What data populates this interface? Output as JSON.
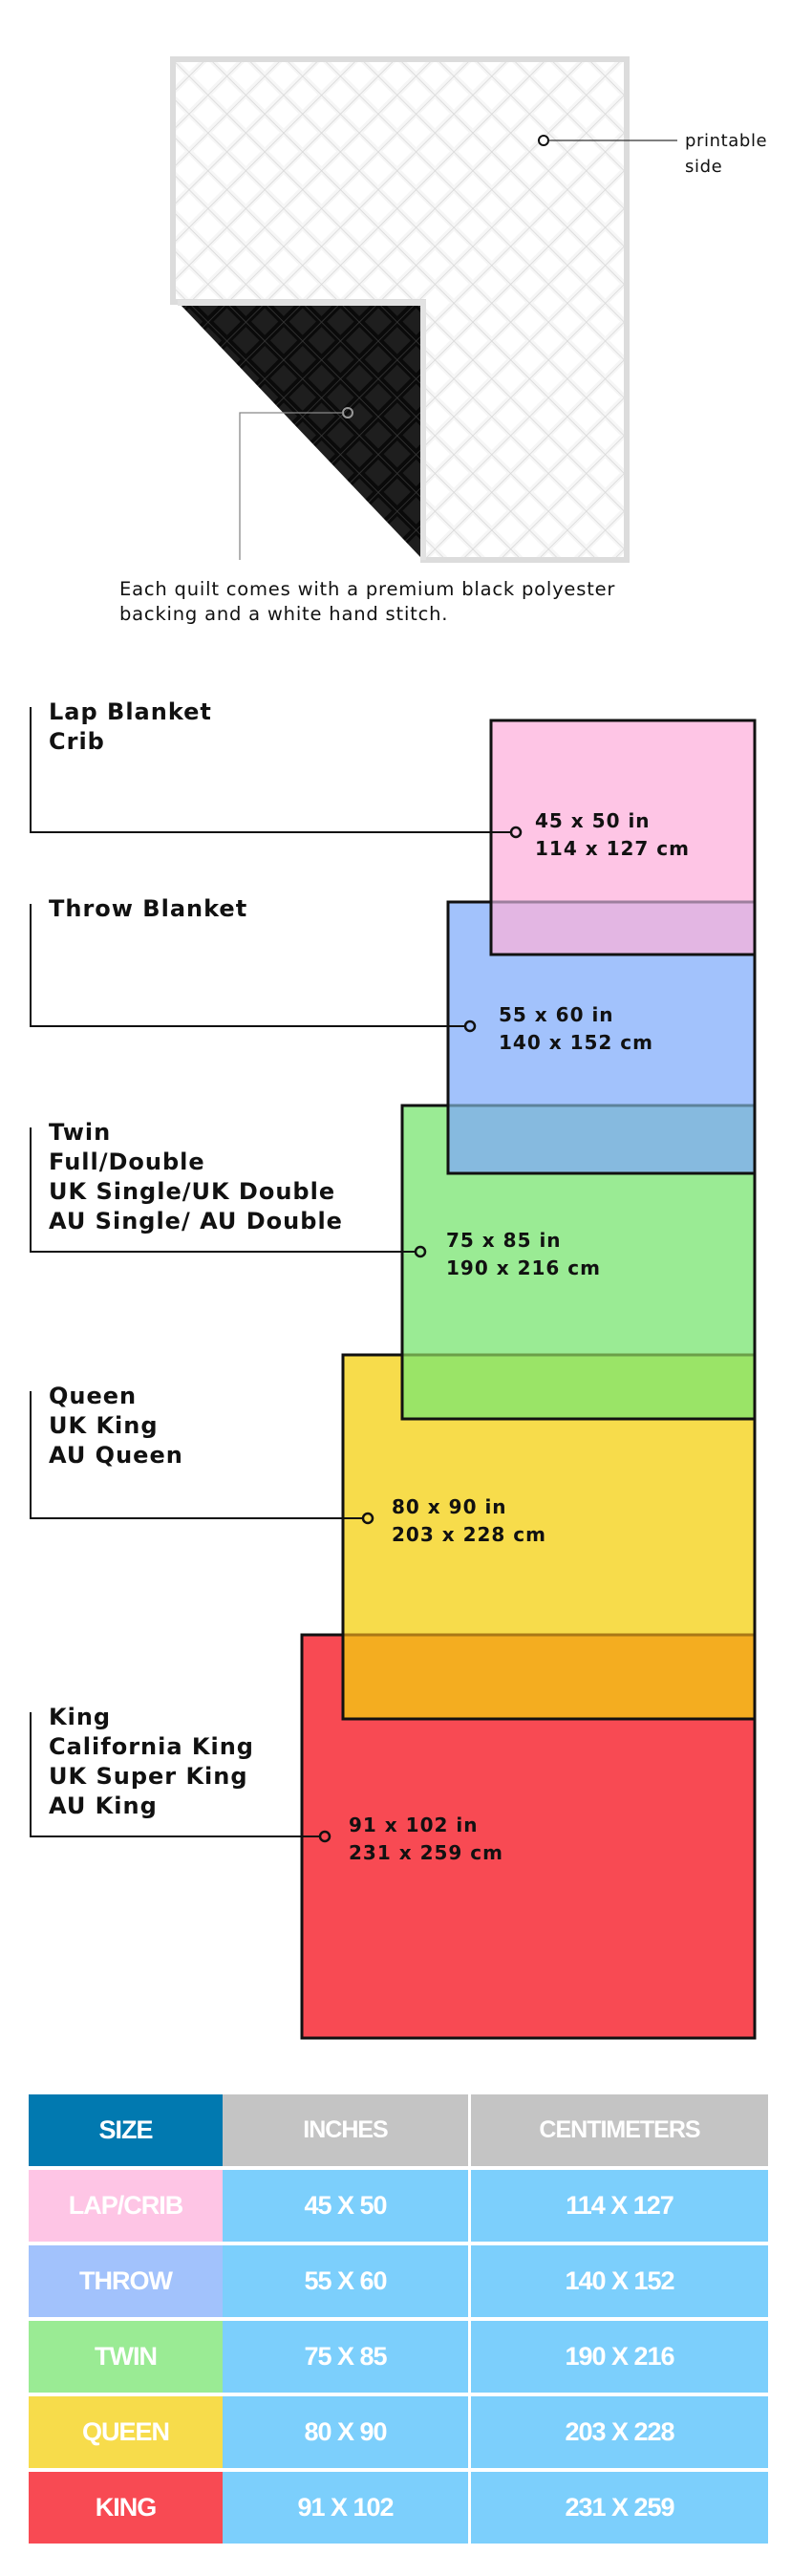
{
  "quilt": {
    "printable_label": [
      "printable",
      "side"
    ],
    "caption": [
      "Each quilt comes with a premium black polyester",
      "backing and a white hand stitch."
    ],
    "colors": {
      "front": "#f4f4f4",
      "backing": "#111111",
      "stitch": "#dcdcdc"
    }
  },
  "sizes": [
    {
      "labels": [
        "Lap Blanket",
        "Crib"
      ],
      "inches": "45 x 50 in",
      "cm": "114 x 127 cm",
      "color": "#fec5e5"
    },
    {
      "labels": [
        "Throw Blanket"
      ],
      "inches": "55 x 60 in",
      "cm": "140 x 152 cm",
      "color": "#a2c2fc"
    },
    {
      "labels": [
        "Twin",
        "Full/Double",
        "UK Single/UK Double",
        "AU Single/ AU Double"
      ],
      "inches": "75 x 85 in",
      "cm": "190 x 216 cm",
      "color": "#9aeb94"
    },
    {
      "labels": [
        "Queen",
        "UK King",
        "AU Queen"
      ],
      "inches": "80 x 90 in",
      "cm": "203 x 228 cm",
      "color": "#f7dc4b"
    },
    {
      "labels": [
        "King",
        "California King",
        "UK Super King",
        "AU King"
      ],
      "inches": "91 x 102 in",
      "cm": "231 x 259 cm",
      "color": "#f84a53"
    }
  ],
  "table": {
    "headers": [
      "SIZE",
      "INCHES",
      "CENTIMETERS"
    ],
    "rows": [
      {
        "size": "LAP/CRIB",
        "inches": "45 X 50",
        "cm": "114 X 127",
        "color": "#fec5e5"
      },
      {
        "size": "THROW",
        "inches": "55 X 60",
        "cm": "140 X 152",
        "color": "#a2c2fc"
      },
      {
        "size": "TWIN",
        "inches": "75 X 85",
        "cm": "190 X 216",
        "color": "#9aeb94"
      },
      {
        "size": "QUEEN",
        "inches": "80 X 90",
        "cm": "203 X 228",
        "color": "#f7dc4b"
      },
      {
        "size": "KING",
        "inches": "91 X 102",
        "cm": "231 X 259",
        "color": "#f84a53"
      }
    ],
    "colors": {
      "header_size": "#0179b0",
      "header_other": "#c4c4c4",
      "value_cells": "#7ccffc"
    }
  }
}
